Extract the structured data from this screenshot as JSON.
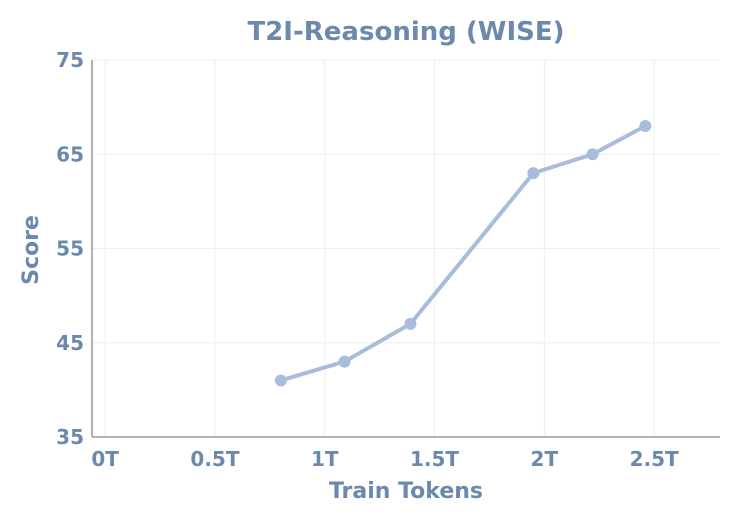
{
  "chart_data": {
    "type": "line",
    "title": "T2I-Reasoning (WISE)",
    "xlabel": "Train Tokens",
    "ylabel": "Score",
    "x_unit": "T tokens",
    "xlim": [
      -0.06,
      2.8
    ],
    "ylim": [
      35,
      75
    ],
    "xticks": [
      0,
      0.5,
      1,
      1.5,
      2,
      2.5
    ],
    "xtick_labels": [
      "0T",
      "0.5T",
      "1T",
      "1.5T",
      "2T",
      "2.5T"
    ],
    "yticks": [
      35,
      45,
      55,
      65,
      75
    ],
    "ytick_labels": [
      "35",
      "45",
      "55",
      "65",
      "75"
    ],
    "grid": true,
    "series": [
      {
        "x": [
          0.8,
          1.09,
          1.39,
          1.95,
          2.22,
          2.46
        ],
        "y": [
          41,
          43,
          47,
          63,
          65,
          68
        ]
      }
    ]
  },
  "colors": {
    "text": "#6b88ad",
    "line": "#a8bcdb",
    "axis": "#999999",
    "grid": "#eeeeee"
  }
}
